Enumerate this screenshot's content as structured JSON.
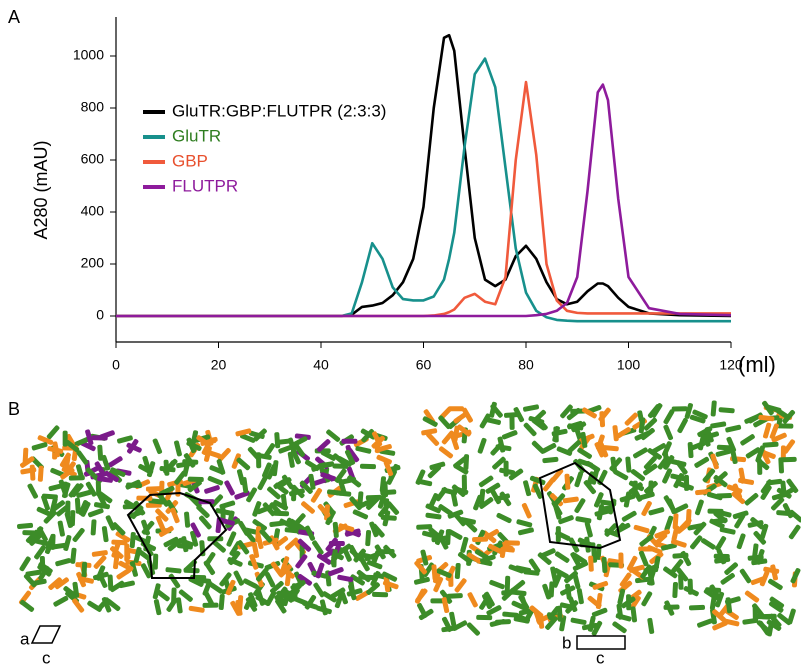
{
  "figure": {
    "panel_a": "A",
    "panel_b": "B",
    "cell_left": [
      "a",
      "c"
    ],
    "cell_right": [
      "b",
      "c"
    ]
  },
  "chart_data": {
    "type": "line",
    "x_label": "(ml)",
    "y_label": "A280 (mAU)",
    "xlim": [
      0,
      120
    ],
    "ylim": [
      -100,
      1150
    ],
    "xticks": [
      0,
      20,
      40,
      60,
      80,
      100,
      120
    ],
    "yticks": [
      0,
      200,
      400,
      600,
      800,
      1000
    ],
    "x": [
      0,
      10,
      20,
      30,
      40,
      44,
      46,
      48,
      50,
      52,
      54,
      56,
      58,
      60,
      62,
      64,
      65,
      66,
      68,
      70,
      72,
      74,
      76,
      78,
      80,
      82,
      84,
      86,
      88,
      90,
      92,
      94,
      95,
      96,
      98,
      100,
      104,
      110,
      120
    ],
    "series": [
      {
        "name": "GluTR:GBP:FLUTPR (2:3:3)",
        "color": "#000000",
        "label_color": "#000000",
        "values": [
          0,
          0,
          0,
          0,
          0,
          0,
          5,
          35,
          40,
          50,
          80,
          130,
          220,
          420,
          800,
          1070,
          1080,
          1020,
          650,
          300,
          140,
          115,
          140,
          230,
          270,
          220,
          130,
          65,
          45,
          55,
          95,
          125,
          125,
          115,
          70,
          35,
          10,
          3,
          0
        ]
      },
      {
        "name": "GluTR",
        "color": "#17908c",
        "label_color": "#2e7d1f",
        "values": [
          0,
          0,
          0,
          0,
          0,
          0,
          10,
          130,
          280,
          220,
          110,
          65,
          60,
          60,
          75,
          140,
          220,
          320,
          650,
          930,
          990,
          880,
          570,
          260,
          90,
          20,
          -5,
          -15,
          -18,
          -20,
          -20,
          -20,
          -20,
          -20,
          -20,
          -20,
          -20,
          -20,
          -20
        ]
      },
      {
        "name": "GBP",
        "color": "#f05a3c",
        "label_color": "#e8502e",
        "values": [
          0,
          0,
          0,
          0,
          0,
          0,
          0,
          0,
          0,
          0,
          0,
          0,
          0,
          0,
          2,
          8,
          15,
          25,
          70,
          85,
          55,
          45,
          150,
          600,
          900,
          620,
          200,
          60,
          20,
          12,
          10,
          10,
          10,
          10,
          10,
          10,
          10,
          10,
          10
        ]
      },
      {
        "name": "FLUTPR",
        "color": "#8e1b9c",
        "label_color": "#8e1b9c",
        "values": [
          0,
          0,
          0,
          0,
          0,
          0,
          0,
          0,
          0,
          0,
          0,
          0,
          0,
          0,
          0,
          0,
          0,
          0,
          0,
          0,
          0,
          0,
          0,
          0,
          0,
          3,
          8,
          20,
          50,
          150,
          480,
          860,
          890,
          830,
          450,
          150,
          30,
          8,
          3
        ]
      }
    ]
  }
}
